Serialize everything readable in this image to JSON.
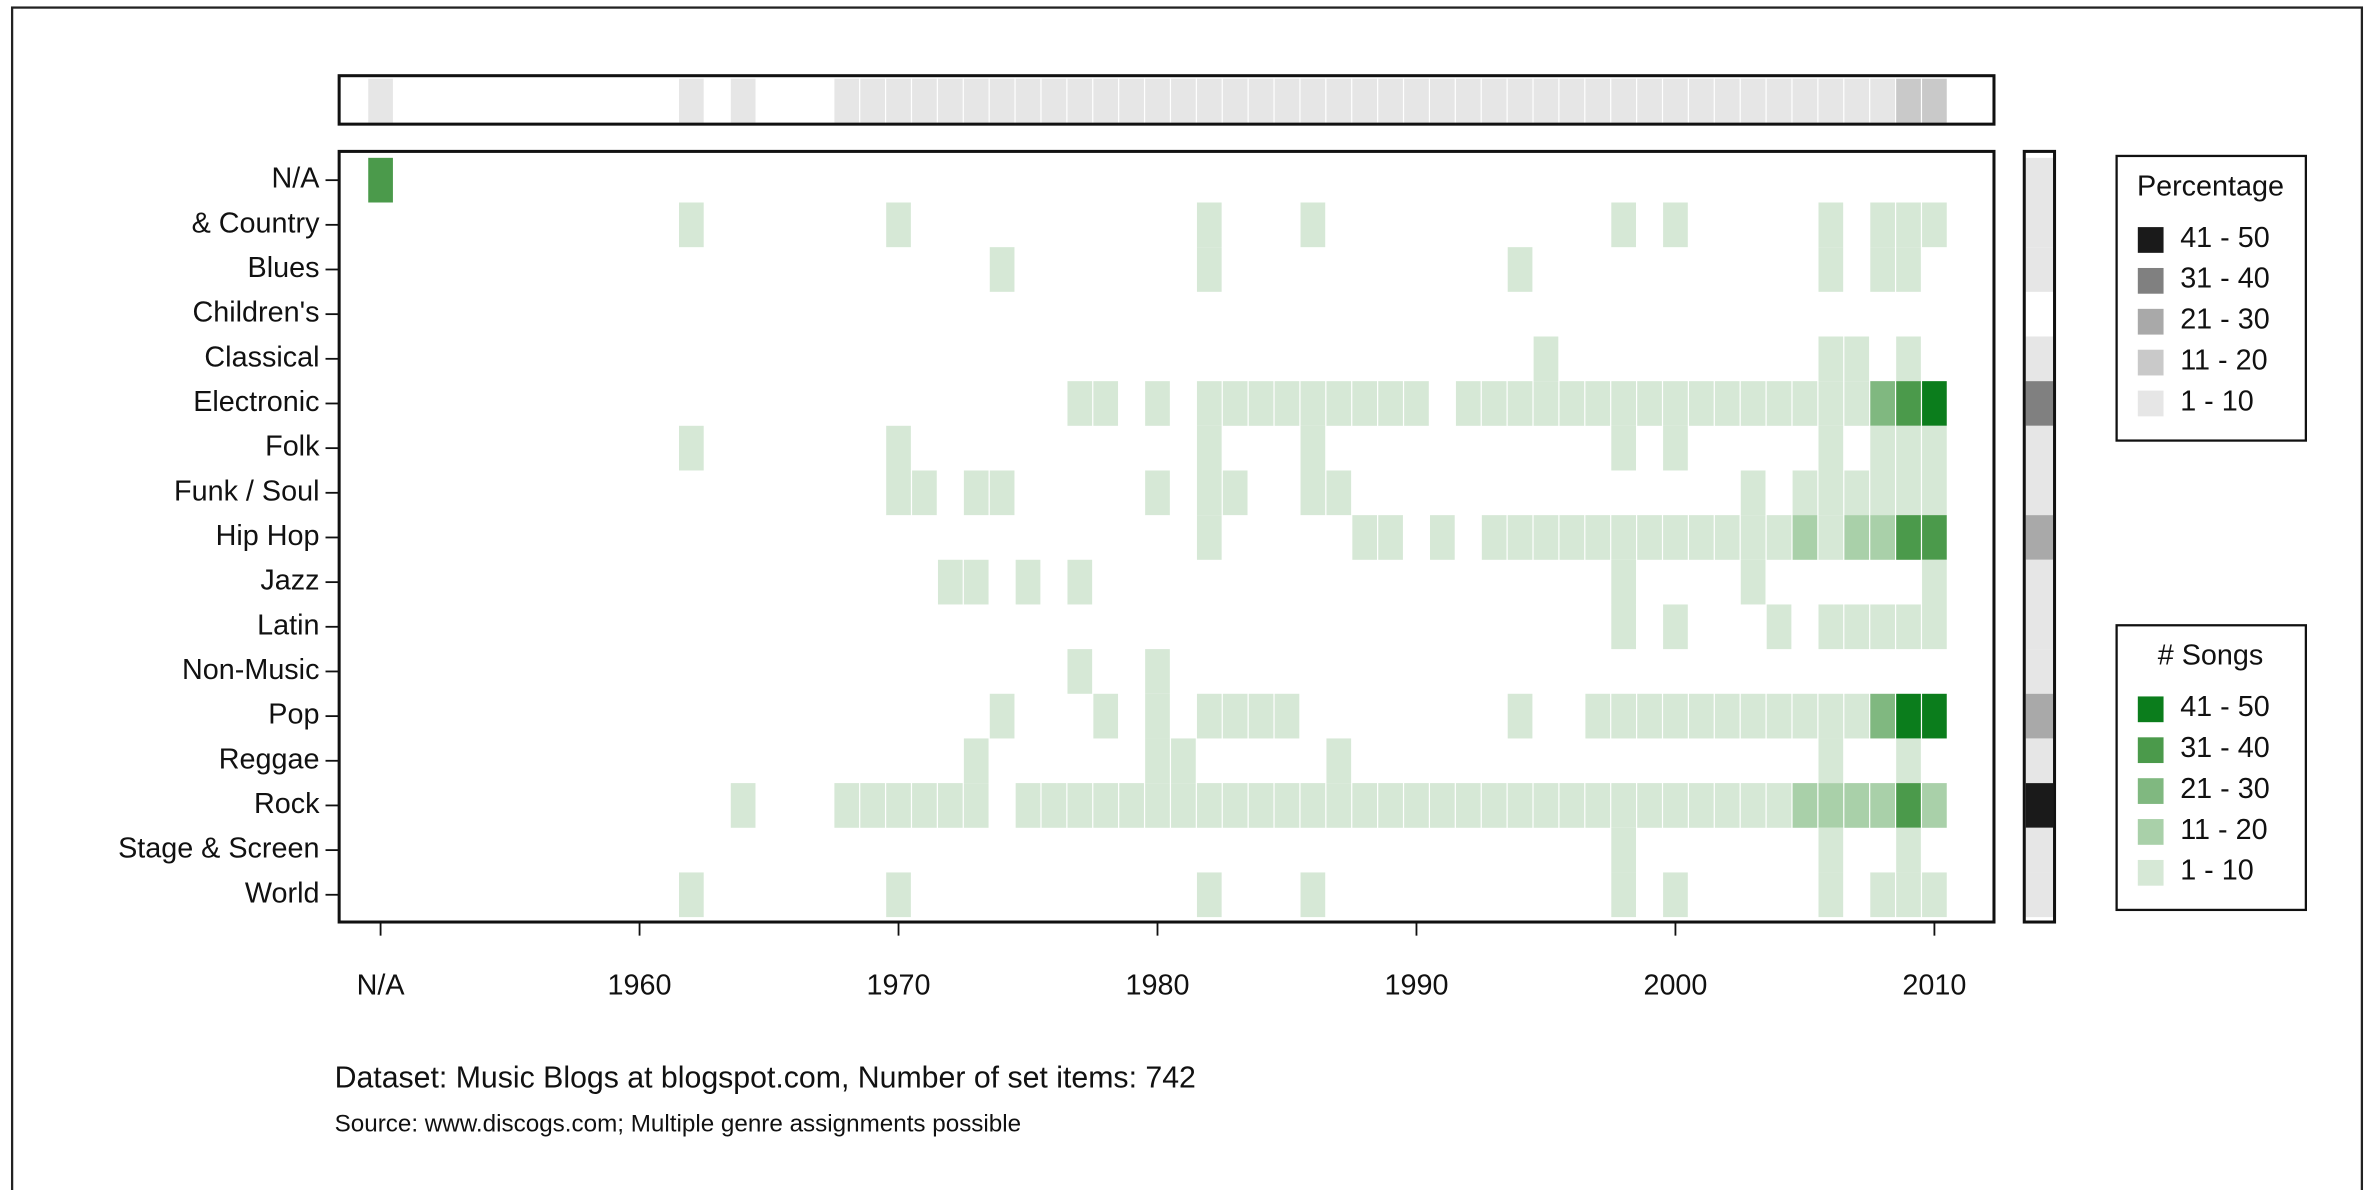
{
  "chart_data": {
    "type": "heatmap",
    "xlim": [
      1948.4,
      2012.3
    ],
    "xticks": [
      {
        "value": 1950,
        "label": "N/A"
      },
      1960,
      1970,
      1980,
      1990,
      2000,
      2010
    ],
    "series": [
      {
        "name": "N/A",
        "x": [
          1950
        ],
        "values": [
          35
        ]
      },
      {
        "name": "& Country",
        "x": [
          1962,
          1970,
          1982,
          1986,
          1998,
          2000,
          2006,
          2008,
          2009,
          2010
        ],
        "values": [
          5,
          5,
          5,
          5,
          5,
          5,
          5,
          5,
          5,
          5
        ]
      },
      {
        "name": "Blues",
        "x": [
          1974,
          1982,
          1994,
          2006,
          2008,
          2009
        ],
        "values": [
          5,
          5,
          5,
          5,
          5,
          5
        ]
      },
      {
        "name": "Children's",
        "x": [],
        "values": []
      },
      {
        "name": "Classical",
        "x": [
          1995,
          2006,
          2007,
          2009
        ],
        "values": [
          5,
          5,
          5,
          5
        ]
      },
      {
        "name": "Electronic",
        "x": [
          1977,
          1978,
          1980,
          1982,
          1983,
          1984,
          1985,
          1986,
          1987,
          1988,
          1989,
          1990,
          1992,
          1993,
          1994,
          1995,
          1996,
          1997,
          1998,
          1999,
          2000,
          2001,
          2002,
          2003,
          2004,
          2005,
          2006,
          2007,
          2008,
          2009,
          2010
        ],
        "values": [
          5,
          5,
          5,
          5,
          5,
          5,
          5,
          5,
          5,
          5,
          5,
          5,
          5,
          5,
          5,
          5,
          5,
          5,
          5,
          5,
          5,
          5,
          5,
          5,
          5,
          5,
          5,
          5,
          25,
          35,
          45
        ]
      },
      {
        "name": "Folk",
        "x": [
          1962,
          1970,
          1982,
          1986,
          1998,
          2000,
          2006,
          2008,
          2009,
          2010
        ],
        "values": [
          5,
          5,
          5,
          5,
          5,
          5,
          5,
          5,
          5,
          5
        ]
      },
      {
        "name": "Funk / Soul",
        "x": [
          1970,
          1971,
          1973,
          1974,
          1980,
          1982,
          1983,
          1986,
          1987,
          2003,
          2005,
          2006,
          2007,
          2008,
          2009,
          2010
        ],
        "values": [
          5,
          5,
          5,
          5,
          5,
          5,
          5,
          5,
          5,
          5,
          5,
          5,
          5,
          5,
          5,
          5
        ]
      },
      {
        "name": "Hip Hop",
        "x": [
          1982,
          1988,
          1989,
          1991,
          1993,
          1994,
          1995,
          1996,
          1997,
          1998,
          1999,
          2000,
          2001,
          2002,
          2003,
          2004,
          2005,
          2006,
          2007,
          2008,
          2009,
          2010
        ],
        "values": [
          5,
          5,
          5,
          5,
          5,
          5,
          5,
          5,
          5,
          5,
          5,
          5,
          5,
          5,
          5,
          5,
          15,
          5,
          15,
          15,
          35,
          35
        ]
      },
      {
        "name": "Jazz",
        "x": [
          1972,
          1973,
          1975,
          1977,
          1998,
          2003,
          2010
        ],
        "values": [
          5,
          5,
          5,
          5,
          5,
          5,
          5
        ]
      },
      {
        "name": "Latin",
        "x": [
          1998,
          2000,
          2004,
          2006,
          2007,
          2008,
          2009,
          2010
        ],
        "values": [
          5,
          5,
          5,
          5,
          5,
          5,
          5,
          5
        ]
      },
      {
        "name": "Non-Music",
        "x": [
          1977,
          1980
        ],
        "values": [
          5,
          5
        ]
      },
      {
        "name": "Pop",
        "x": [
          1974,
          1978,
          1980,
          1982,
          1983,
          1984,
          1985,
          1994,
          1997,
          1998,
          1999,
          2000,
          2001,
          2002,
          2003,
          2004,
          2005,
          2006,
          2007,
          2008,
          2009,
          2010
        ],
        "values": [
          5,
          5,
          5,
          5,
          5,
          5,
          5,
          5,
          5,
          5,
          5,
          5,
          5,
          5,
          5,
          5,
          5,
          5,
          5,
          25,
          45,
          45
        ]
      },
      {
        "name": "Reggae",
        "x": [
          1973,
          1980,
          1981,
          1987,
          2006,
          2009
        ],
        "values": [
          5,
          5,
          5,
          5,
          5,
          5
        ]
      },
      {
        "name": "Rock",
        "x": [
          1964,
          1968,
          1969,
          1970,
          1971,
          1972,
          1973,
          1975,
          1976,
          1977,
          1978,
          1979,
          1980,
          1981,
          1982,
          1983,
          1984,
          1985,
          1986,
          1987,
          1988,
          1989,
          1990,
          1991,
          1992,
          1993,
          1994,
          1995,
          1996,
          1997,
          1998,
          1999,
          2000,
          2001,
          2002,
          2003,
          2004,
          2005,
          2006,
          2007,
          2008,
          2009,
          2010
        ],
        "values": [
          5,
          5,
          5,
          5,
          5,
          5,
          5,
          5,
          5,
          5,
          5,
          5,
          5,
          5,
          5,
          5,
          5,
          5,
          5,
          5,
          5,
          5,
          5,
          5,
          5,
          5,
          5,
          5,
          5,
          5,
          5,
          5,
          5,
          5,
          5,
          5,
          5,
          15,
          15,
          15,
          15,
          35,
          15
        ]
      },
      {
        "name": "Stage & Screen",
        "x": [
          1998,
          2006,
          2009
        ],
        "values": [
          5,
          5,
          5
        ]
      },
      {
        "name": "World",
        "x": [
          1962,
          1970,
          1982,
          1986,
          1998,
          2000,
          2006,
          2008,
          2009,
          2010
        ],
        "values": [
          5,
          5,
          5,
          5,
          5,
          5,
          5,
          5,
          5,
          5
        ]
      }
    ],
    "x_margin": {
      "x": [
        1950,
        1962,
        1964,
        1968,
        1969,
        1970,
        1971,
        1972,
        1973,
        1974,
        1975,
        1976,
        1977,
        1978,
        1979,
        1980,
        1981,
        1982,
        1983,
        1984,
        1985,
        1986,
        1987,
        1988,
        1989,
        1990,
        1991,
        1992,
        1993,
        1994,
        1995,
        1996,
        1997,
        1998,
        1999,
        2000,
        2001,
        2002,
        2003,
        2004,
        2005,
        2006,
        2007,
        2008,
        2009,
        2010
      ],
      "values": [
        5,
        5,
        5,
        5,
        5,
        5,
        5,
        5,
        5,
        5,
        5,
        5,
        5,
        5,
        5,
        5,
        5,
        5,
        5,
        5,
        5,
        5,
        5,
        5,
        5,
        5,
        5,
        5,
        5,
        5,
        5,
        5,
        5,
        5,
        5,
        5,
        5,
        5,
        5,
        5,
        5,
        5,
        5,
        5,
        15,
        15
      ]
    },
    "y_margin": {
      "values": [
        5,
        5,
        5,
        null,
        5,
        35,
        5,
        5,
        25,
        5,
        5,
        5,
        25,
        5,
        45,
        5,
        5
      ]
    },
    "margin_legend": {
      "title": "Percentage",
      "bins": [
        {
          "label": "41 - 50",
          "range": [
            41,
            50
          ],
          "color": "#1a1a1a"
        },
        {
          "label": "31 - 40",
          "range": [
            31,
            40
          ],
          "color": "#808080"
        },
        {
          "label": "21 - 30",
          "range": [
            21,
            30
          ],
          "color": "#a9a9a9"
        },
        {
          "label": "11 - 20",
          "range": [
            11,
            20
          ],
          "color": "#c9c9c9"
        },
        {
          "label": "1 - 10",
          "range": [
            1,
            10
          ],
          "color": "#e6e6e6"
        }
      ]
    },
    "color_legend": {
      "title": "# Songs",
      "bins": [
        {
          "label": "41 - 50",
          "range": [
            41,
            50
          ],
          "color": "#0b7d1c"
        },
        {
          "label": "31 - 40",
          "range": [
            31,
            40
          ],
          "color": "#4b9a4b"
        },
        {
          "label": "21 - 30",
          "range": [
            21,
            30
          ],
          "color": "#80b880"
        },
        {
          "label": "11 - 20",
          "range": [
            11,
            20
          ],
          "color": "#a9d0a9"
        },
        {
          "label": "1 - 10",
          "range": [
            1,
            10
          ],
          "color": "#d6e8d6"
        }
      ]
    },
    "footnotes": [
      "Dataset: Music Blogs at blogspot.com, Number of set items: 742",
      "Source: www.discogs.com; Multiple genre assignments possible"
    ]
  }
}
